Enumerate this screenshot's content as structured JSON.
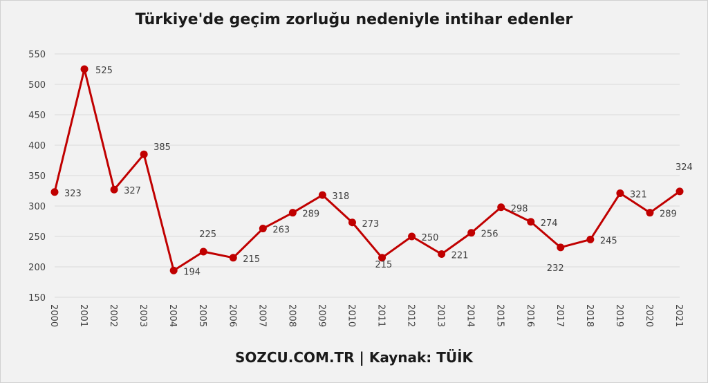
{
  "chart_data": {
    "type": "line",
    "title": "Türkiye'de geçim zorluğu nedeniyle intihar edenler",
    "x": [
      "2000",
      "2001",
      "2002",
      "2003",
      "2004",
      "2005",
      "2006",
      "2007",
      "2008",
      "2009",
      "2010",
      "2011",
      "2012",
      "2013",
      "2014",
      "2015",
      "2016",
      "2017",
      "2018",
      "2019",
      "2020",
      "2021"
    ],
    "series": [
      {
        "values": [
          323,
          525,
          327,
          385,
          194,
          225,
          215,
          263,
          289,
          318,
          273,
          215,
          250,
          221,
          256,
          298,
          274,
          232,
          245,
          321,
          289,
          324
        ]
      }
    ],
    "ylim": [
      150,
      550
    ],
    "yticks": [
      150,
      200,
      250,
      300,
      350,
      400,
      450,
      500,
      550
    ],
    "grid": true,
    "colors": {
      "line": "#c00000",
      "marker": "#c00000",
      "grid": "#d9d9d9",
      "text": "#404040"
    }
  },
  "footer": {
    "source": "SOZCU.COM.TR | Kaynak: TÜİK"
  }
}
